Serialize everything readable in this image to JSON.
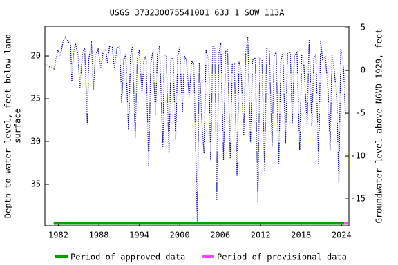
{
  "chart_data": {
    "type": "line",
    "title": "USGS 373230075541001 63J  1 SOW 113A",
    "ylabel": [
      "Depth to water level, feet below land",
      "surface"
    ],
    "y2label": "Groundwater level above NGVD 1929, feet",
    "x": [
      1980.1,
      1981.4,
      1981.6,
      1981.9,
      1982.3,
      1982.7,
      1983.0,
      1983.5,
      1983.8,
      1984.0,
      1984.2,
      1984.5,
      1984.9,
      1985.2,
      1985.6,
      1985.9,
      1986.3,
      1986.5,
      1986.9,
      1987.2,
      1987.5,
      1987.9,
      1988.3,
      1988.6,
      1989.0,
      1989.3,
      1989.6,
      1990.0,
      1990.3,
      1990.7,
      1991.1,
      1991.4,
      1991.7,
      1992.0,
      1992.4,
      1992.7,
      1993.0,
      1993.4,
      1993.7,
      1994.0,
      1994.4,
      1994.7,
      1995.0,
      1995.4,
      1995.7,
      1996.0,
      1996.4,
      1996.7,
      1997.0,
      1997.5,
      1997.7,
      1998.0,
      1998.4,
      1998.7,
      1999.0,
      1999.4,
      1999.7,
      2000.0,
      2000.4,
      2000.7,
      2001.0,
      2001.4,
      2001.8,
      2002.1,
      2002.6,
      2002.9,
      2003.3,
      2003.6,
      2003.9,
      2004.3,
      2004.6,
      2004.9,
      2005.2,
      2005.5,
      2005.8,
      2006.1,
      2006.5,
      2006.8,
      2007.1,
      2007.5,
      2007.8,
      2008.1,
      2008.5,
      2008.8,
      2009.1,
      2009.5,
      2009.8,
      2010.1,
      2010.5,
      2010.8,
      2011.2,
      2011.6,
      2011.9,
      2012.2,
      2012.6,
      2012.9,
      2013.3,
      2013.7,
      2014.0,
      2014.3,
      2014.7,
      2015.0,
      2015.3,
      2015.7,
      2016.0,
      2016.4,
      2016.7,
      2017.0,
      2017.4,
      2017.8,
      2018.1,
      2018.4,
      2018.9,
      2019.2,
      2019.6,
      2019.9,
      2020.2,
      2020.6,
      2020.9,
      2021.2,
      2021.6,
      2022.0,
      2022.3,
      2022.6,
      2022.9,
      2023.3,
      2023.6,
      2023.9,
      2024.3,
      2024.6
    ],
    "series": [
      {
        "name": "Depth to water level",
        "color": "#0000a0",
        "values": [
          21.0,
          21.6,
          20.5,
          19.3,
          20.0,
          18.3,
          17.8,
          18.4,
          18.5,
          23.0,
          20.0,
          18.5,
          19.8,
          23.7,
          19.5,
          19.1,
          28.0,
          20.5,
          18.3,
          24.0,
          20.0,
          19.2,
          21.5,
          19.7,
          19.2,
          20.8,
          18.8,
          19.0,
          21.5,
          19.1,
          18.9,
          25.5,
          20.5,
          19.8,
          28.7,
          20.0,
          18.9,
          29.6,
          20.3,
          19.3,
          24.3,
          20.5,
          20.0,
          32.9,
          21.0,
          19.5,
          26.8,
          19.5,
          18.8,
          30.8,
          19.8,
          20.0,
          31.3,
          20.5,
          20.2,
          29.8,
          20.0,
          19.0,
          26.6,
          20.0,
          20.5,
          24.8,
          20.6,
          21.0,
          39.3,
          20.8,
          27.8,
          31.3,
          19.3,
          20.5,
          32.2,
          18.8,
          19.0,
          36.9,
          19.8,
          18.5,
          32.2,
          19.5,
          19.3,
          32.0,
          21.0,
          20.8,
          34.0,
          20.7,
          21.5,
          29.3,
          19.5,
          17.8,
          30.1,
          20.5,
          20.2,
          37.1,
          20.2,
          20.5,
          33.5,
          19.0,
          19.5,
          30.6,
          20.0,
          19.5,
          32.6,
          20.6,
          19.6,
          30.2,
          19.7,
          19.5,
          27.9,
          20.0,
          19.6,
          31.0,
          19.8,
          20.8,
          28.0,
          18.1,
          28.2,
          20.3,
          19.8,
          32.7,
          18.3,
          20.5,
          20.0,
          24.0,
          31.0,
          19.8,
          21.5,
          25.0,
          34.8,
          19.2,
          21.5,
          27.0
        ]
      }
    ],
    "xlim": [
      1980.0,
      2025.1
    ],
    "xticks": [
      1982,
      1988,
      1994,
      2000,
      2006,
      2012,
      2018,
      2024
    ],
    "ylim": [
      16.53,
      39.84
    ],
    "yticks": [
      20,
      25,
      30,
      35
    ],
    "y2lim": [
      5.17,
      -18.14
    ],
    "y2ticks": [
      5,
      0,
      -5,
      -10,
      -15
    ],
    "periods": [
      {
        "name": "Period of approved data",
        "color": "#00a000",
        "start": 1981.3,
        "end": 2024.4
      },
      {
        "name": "Period of provisional data",
        "color": "#ff44ff",
        "start": 2024.4,
        "end": 2025.0
      }
    ]
  }
}
